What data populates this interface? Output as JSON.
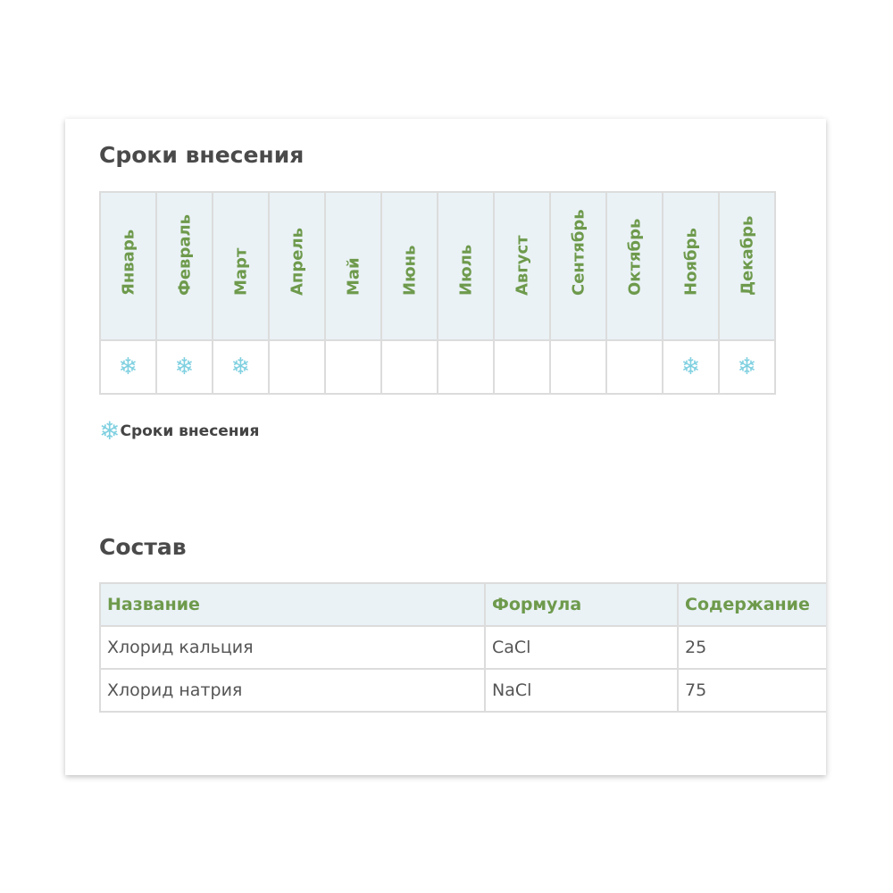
{
  "schedule": {
    "title": "Сроки внесения",
    "months": [
      {
        "label": "Январь",
        "active": true
      },
      {
        "label": "Февраль",
        "active": true
      },
      {
        "label": "Март",
        "active": true
      },
      {
        "label": "Апрель",
        "active": false
      },
      {
        "label": "Май",
        "active": false
      },
      {
        "label": "Июнь",
        "active": false
      },
      {
        "label": "Июль",
        "active": false
      },
      {
        "label": "Август",
        "active": false
      },
      {
        "label": "Сентябрь",
        "active": false
      },
      {
        "label": "Октябрь",
        "active": false
      },
      {
        "label": "Ноябрь",
        "active": true
      },
      {
        "label": "Декабрь",
        "active": true
      }
    ],
    "marker_icon": "snowflake-icon",
    "legend_label": "Сроки внесения"
  },
  "composition": {
    "title": "Состав",
    "headers": [
      "Название",
      "Формула",
      "Содержание"
    ],
    "rows": [
      [
        "Хлорид кальция",
        "CaCl",
        "25"
      ],
      [
        "Хлорид натрия",
        "NaCl",
        "75"
      ]
    ]
  }
}
